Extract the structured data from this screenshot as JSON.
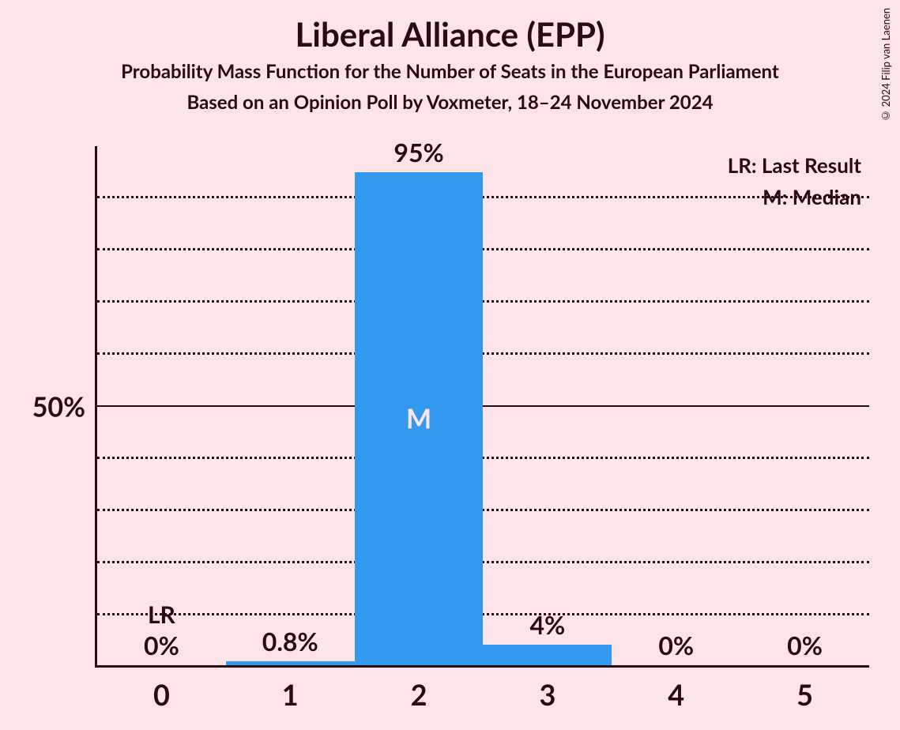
{
  "title": "Liberal Alliance (EPP)",
  "subtitle1": "Probability Mass Function for the Number of Seats in the European Parliament",
  "subtitle2": "Based on an Opinion Poll by Voxmeter, 18–24 November 2024",
  "copyright": "© 2024 Filip van Laenen",
  "chart": {
    "type": "bar",
    "background_color": "#fce4e8",
    "bar_color": "#3399ef",
    "text_color": "#2a0a14",
    "grid_color": "#2a0a14",
    "inside_label_color": "#fce4e8",
    "font_family": "Lato, Segoe UI, sans-serif",
    "title_fontsize": 42,
    "subtitle_fontsize": 24,
    "axis_label_fontsize": 34,
    "value_label_fontsize": 32,
    "ylim": [
      0,
      100
    ],
    "ytick_step": 10,
    "y_major_at": 50,
    "y_label_at_50": "50%",
    "bar_width_ratio": 1.0,
    "categories": [
      "0",
      "1",
      "2",
      "3",
      "4",
      "5"
    ],
    "values_pct": [
      0,
      0.8,
      95,
      4,
      0,
      0
    ],
    "value_labels": [
      "0%",
      "0.8%",
      "95%",
      "4%",
      "0%",
      "0%"
    ],
    "bars": [
      {
        "x": "0",
        "pct": 0,
        "label": "0%",
        "annot": "LR",
        "annot_pos": "above"
      },
      {
        "x": "1",
        "pct": 0.8,
        "label": "0.8%",
        "annot": null,
        "annot_pos": null
      },
      {
        "x": "2",
        "pct": 95,
        "label": "95%",
        "annot": "M",
        "annot_pos": "inside"
      },
      {
        "x": "3",
        "pct": 4,
        "label": "4%",
        "annot": null,
        "annot_pos": null
      },
      {
        "x": "4",
        "pct": 0,
        "label": "0%",
        "annot": null,
        "annot_pos": null
      },
      {
        "x": "5",
        "pct": 0,
        "label": "0%",
        "annot": null,
        "annot_pos": null
      }
    ],
    "legend": {
      "lr": "LR: Last Result",
      "m": "M: Median"
    }
  }
}
